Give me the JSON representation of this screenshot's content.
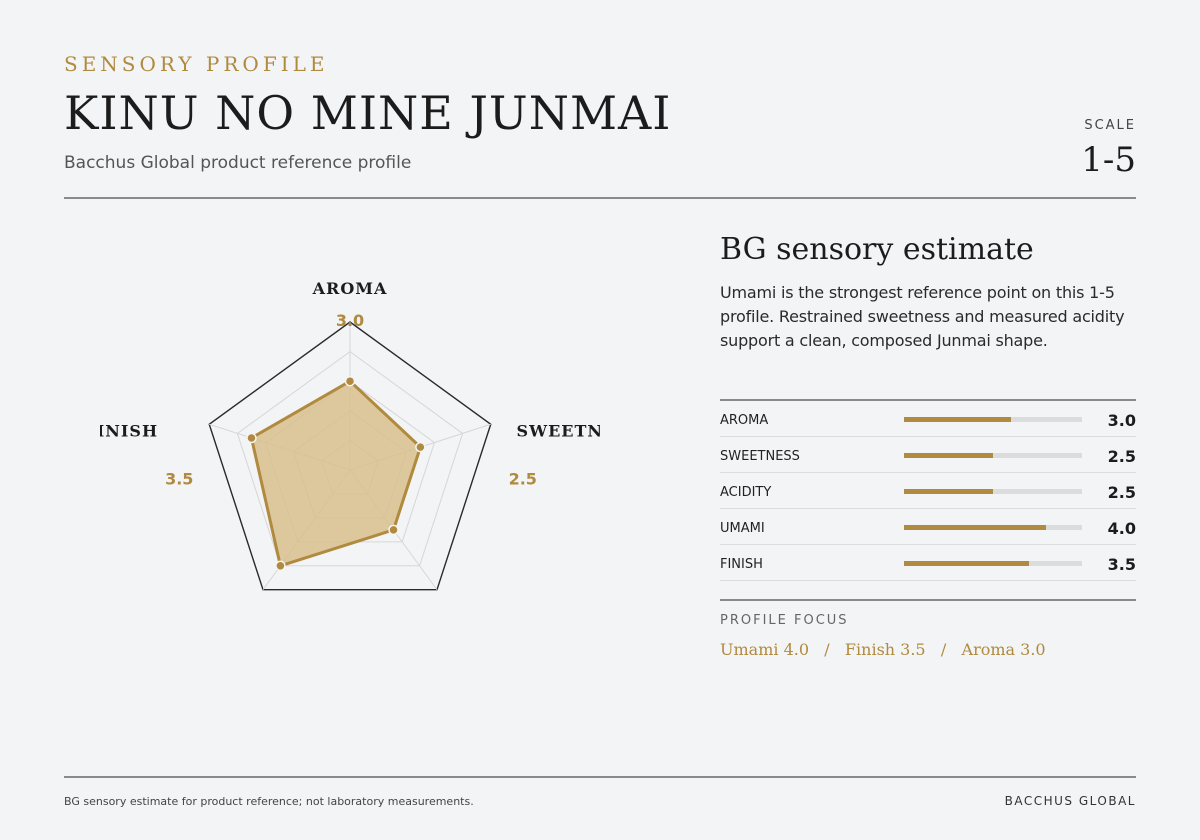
{
  "header": {
    "eyebrow": "SENSORY PROFILE",
    "title": "KINU NO MINE JUNMAI",
    "subtitle": "Bacchus Global product reference profile",
    "scale_label": "SCALE",
    "scale_value": "1-5"
  },
  "panel": {
    "title": "BG sensory estimate",
    "description": "Umami is the strongest reference point on this 1-5 profile. Restrained sweetness and measured acidity support a clean, composed Junmai shape."
  },
  "bars": [
    {
      "label": "AROMA",
      "value": "3.0",
      "fraction": 0.6
    },
    {
      "label": "SWEETNESS",
      "value": "2.5",
      "fraction": 0.5
    },
    {
      "label": "ACIDITY",
      "value": "2.5",
      "fraction": 0.5
    },
    {
      "label": "UMAMI",
      "value": "4.0",
      "fraction": 0.8
    },
    {
      "label": "FINISH",
      "value": "3.5",
      "fraction": 0.7
    }
  ],
  "focus": {
    "label": "PROFILE FOCUS",
    "text": "Umami 4.0   /   Finish 3.5   /   Aroma 3.0"
  },
  "footer": {
    "note": "BG sensory estimate for product reference; not laboratory measurements.",
    "brand": "BACCHUS GLOBAL"
  },
  "colors": {
    "accent": "#b08a3e",
    "fill": "#d8c08e",
    "background": "#f3f4f6",
    "text": "#1c1c1c"
  },
  "chart_data": {
    "type": "radar",
    "title": "",
    "scale": [
      0,
      5
    ],
    "axes": [
      "AROMA",
      "SWEETNESS",
      "ACIDITY",
      "UMAMI",
      "FINISH"
    ],
    "values": [
      3.0,
      2.5,
      2.5,
      4.0,
      3.5
    ],
    "value_labels": [
      "3.0",
      "2.5",
      "2.5",
      "4.0",
      "3.5"
    ]
  }
}
